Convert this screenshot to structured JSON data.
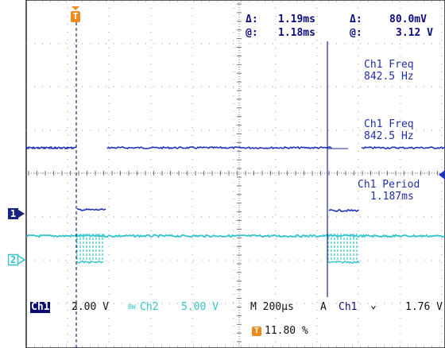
{
  "cursor_readout": {
    "row1": {
      "time_label": "Δ:",
      "time_value": "1.19ms",
      "volt_label": "Δ:",
      "volt_value": "80.0mV"
    },
    "row2": {
      "time_label": "@:",
      "time_value": "1.18ms",
      "volt_label": "@:",
      "volt_value": "3.12 V"
    }
  },
  "measurements": [
    {
      "name": "Ch1 Freq",
      "value": "842.5 Hz"
    },
    {
      "name": "Ch1 Freq",
      "value": "842.5 Hz"
    },
    {
      "name": "Ch1 Period",
      "value": "1.187ms"
    }
  ],
  "status_bar": {
    "ch1_label": "Ch1",
    "ch1_scale": "2.00 V",
    "ch2_prefix": "BW",
    "ch2_label": "Ch2",
    "ch2_scale": "5.00 V",
    "timebase": "M 200μs",
    "trigger_mode": "A",
    "trigger_source": "Ch1",
    "trigger_slope": "⌄",
    "trigger_level": "1.76 V",
    "trigger_position": "11.80 %"
  },
  "markers": {
    "trigger_flag": "T",
    "ch1_marker": "1",
    "ch2_marker": "2",
    "trigger_pos_flag": "T"
  },
  "colors": {
    "ch1": "#2233bb",
    "ch2": "#33c4cc",
    "cursor": "#1a2a90",
    "grid": "#999999",
    "trigger": "#f08a1c"
  }
}
